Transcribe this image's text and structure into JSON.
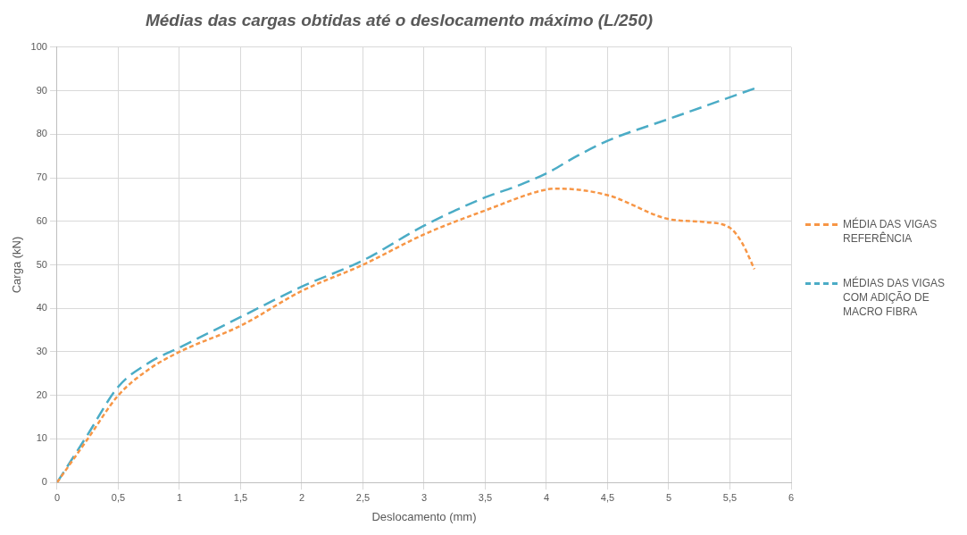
{
  "chart_data": {
    "type": "line",
    "title": "Médias das cargas obtidas até o deslocamento máximo (L/250)",
    "xlabel": "Deslocamento (mm)",
    "ylabel": "Carga (kN)",
    "xlim": [
      0,
      6
    ],
    "xticks": [
      0,
      {
        "value": 0.5,
        "label": "0,5"
      },
      1,
      {
        "value": 1.5,
        "label": "1,5"
      },
      2,
      {
        "value": 2.5,
        "label": "2,5"
      },
      3,
      {
        "value": 3.5,
        "label": "3,5"
      },
      4,
      {
        "value": 4.5,
        "label": "4,5"
      },
      5,
      {
        "value": 5.5,
        "label": "5,5"
      },
      6
    ],
    "ylim": [
      0,
      100
    ],
    "yticks": [
      0,
      10,
      20,
      30,
      40,
      50,
      60,
      70,
      80,
      90,
      100
    ],
    "grid": true,
    "legend": "right",
    "marker": "none",
    "series": [
      {
        "name": "MÉDIA DAS VIGAS REFERÊNCIA",
        "color": "#f79646",
        "line_style": "dotted",
        "x": [
          0,
          0.25,
          0.5,
          0.75,
          1,
          1.5,
          2,
          2.5,
          3,
          3.5,
          4,
          4.1,
          4.5,
          5,
          5.3,
          5.5,
          5.6,
          5.7
        ],
        "values": [
          0,
          10,
          20,
          26,
          30,
          36,
          44,
          50,
          57,
          62.5,
          67.3,
          67.5,
          66,
          60.5,
          59.8,
          58.5,
          55,
          49
        ]
      },
      {
        "name": "MÉDIAS DAS VIGAS COM ADIÇÃO DE MACRO FIBRA",
        "color": "#4bacc6",
        "line_style": "dashed",
        "x": [
          0,
          0.25,
          0.5,
          0.75,
          1,
          1.5,
          2,
          2.5,
          3,
          3.5,
          3.75,
          4,
          4.25,
          4.5,
          5,
          5.7
        ],
        "values": [
          0,
          11,
          22,
          27.5,
          31,
          38,
          45,
          51,
          59,
          65.5,
          68,
          71,
          75,
          78.5,
          83.5,
          90.5
        ]
      }
    ]
  }
}
